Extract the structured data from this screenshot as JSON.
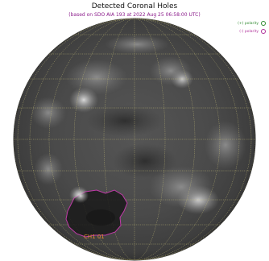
{
  "title": "Detected Coronal Holes",
  "subtitle": "(based on SDO AIA 193 at 2022 Aug 25 06:58:00 UTC)",
  "legend": [
    {
      "label": "(+) polarity",
      "color": "#2f8a2f"
    },
    {
      "label": "(-) polarity",
      "color": "#b0309a"
    }
  ],
  "coronal_hole": {
    "label": "CH1 01",
    "color": "#c03aa8"
  },
  "colors": {
    "grid": "#c9c27a",
    "disk_edge": "#2b2b2b"
  }
}
